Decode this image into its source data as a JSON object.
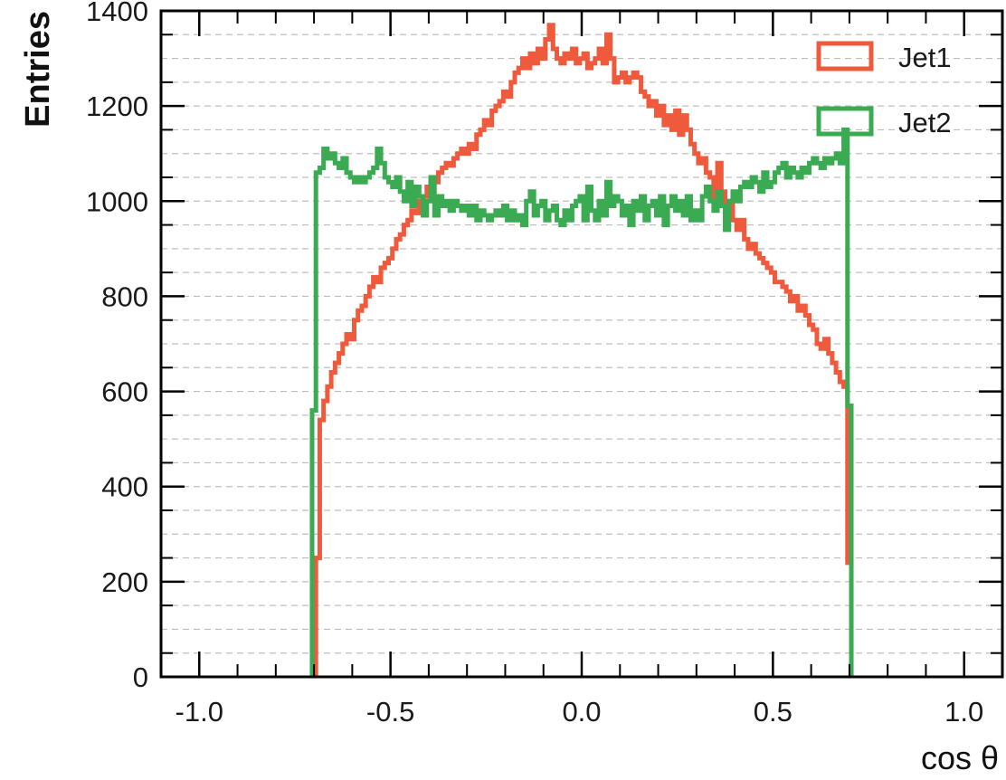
{
  "chart_data": {
    "type": "line",
    "step": true,
    "xlabel": "cos θ",
    "ylabel": "Entries",
    "xlim": [
      -1.1,
      1.1
    ],
    "ylim": [
      0,
      1400
    ],
    "grid": {
      "horizontal": true,
      "vertical": false,
      "style": "dashed"
    },
    "legend_position": "top-right",
    "x_ticks": [
      {
        "value": -1.0,
        "label": "-1.0"
      },
      {
        "value": -0.5,
        "label": "-0.5"
      },
      {
        "value": 0.0,
        "label": "0.0"
      },
      {
        "value": 0.5,
        "label": "0.5"
      },
      {
        "value": 1.0,
        "label": "1.0"
      }
    ],
    "y_ticks": [
      {
        "value": 0,
        "label": "0"
      },
      {
        "value": 200,
        "label": "200"
      },
      {
        "value": 400,
        "label": "400"
      },
      {
        "value": 600,
        "label": "600"
      },
      {
        "value": 800,
        "label": "800"
      },
      {
        "value": 1000,
        "label": "1000"
      },
      {
        "value": 1200,
        "label": "1200"
      },
      {
        "value": 1400,
        "label": "1400"
      }
    ],
    "series": [
      {
        "name": "Jet1",
        "color": "#f05a3c",
        "points": [
          [
            -0.69,
            250
          ],
          [
            -0.68,
            540
          ],
          [
            -0.67,
            580
          ],
          [
            -0.66,
            610
          ],
          [
            -0.65,
            640
          ],
          [
            -0.64,
            660
          ],
          [
            -0.63,
            680
          ],
          [
            -0.62,
            700
          ],
          [
            -0.61,
            720
          ],
          [
            -0.6,
            710
          ],
          [
            -0.59,
            750
          ],
          [
            -0.58,
            770
          ],
          [
            -0.57,
            780
          ],
          [
            -0.56,
            800
          ],
          [
            -0.55,
            820
          ],
          [
            -0.54,
            840
          ],
          [
            -0.53,
            830
          ],
          [
            -0.52,
            860
          ],
          [
            -0.51,
            870
          ],
          [
            -0.5,
            880
          ],
          [
            -0.49,
            900
          ],
          [
            -0.48,
            920
          ],
          [
            -0.47,
            930
          ],
          [
            -0.46,
            950
          ],
          [
            -0.45,
            960
          ],
          [
            -0.44,
            980
          ],
          [
            -0.43,
            975
          ],
          [
            -0.42,
            1000
          ],
          [
            -0.41,
            1010
          ],
          [
            -0.4,
            1030
          ],
          [
            -0.39,
            1050
          ],
          [
            -0.38,
            1040
          ],
          [
            -0.37,
            1060
          ],
          [
            -0.36,
            1070
          ],
          [
            -0.35,
            1080
          ],
          [
            -0.34,
            1075
          ],
          [
            -0.33,
            1090
          ],
          [
            -0.32,
            1100
          ],
          [
            -0.31,
            1110
          ],
          [
            -0.3,
            1100
          ],
          [
            -0.29,
            1120
          ],
          [
            -0.28,
            1110
          ],
          [
            -0.27,
            1140
          ],
          [
            -0.26,
            1150
          ],
          [
            -0.25,
            1170
          ],
          [
            -0.24,
            1160
          ],
          [
            -0.23,
            1190
          ],
          [
            -0.22,
            1200
          ],
          [
            -0.21,
            1210
          ],
          [
            -0.2,
            1230
          ],
          [
            -0.19,
            1220
          ],
          [
            -0.18,
            1250
          ],
          [
            -0.17,
            1270
          ],
          [
            -0.16,
            1280
          ],
          [
            -0.15,
            1300
          ],
          [
            -0.14,
            1280
          ],
          [
            -0.13,
            1310
          ],
          [
            -0.12,
            1290
          ],
          [
            -0.11,
            1320
          ],
          [
            -0.1,
            1300
          ],
          [
            -0.09,
            1340
          ],
          [
            -0.08,
            1370
          ],
          [
            -0.07,
            1320
          ],
          [
            -0.06,
            1300
          ],
          [
            -0.05,
            1290
          ],
          [
            -0.04,
            1310
          ],
          [
            -0.03,
            1300
          ],
          [
            -0.02,
            1320
          ],
          [
            -0.01,
            1290
          ],
          [
            0.0,
            1300
          ],
          [
            0.01,
            1310
          ],
          [
            0.02,
            1280
          ],
          [
            0.03,
            1290
          ],
          [
            0.04,
            1300
          ],
          [
            0.05,
            1320
          ],
          [
            0.06,
            1290
          ],
          [
            0.07,
            1350
          ],
          [
            0.08,
            1300
          ],
          [
            0.09,
            1250
          ],
          [
            0.1,
            1260
          ],
          [
            0.11,
            1270
          ],
          [
            0.12,
            1250
          ],
          [
            0.13,
            1260
          ],
          [
            0.14,
            1270
          ],
          [
            0.15,
            1260
          ],
          [
            0.16,
            1230
          ],
          [
            0.17,
            1220
          ],
          [
            0.18,
            1200
          ],
          [
            0.19,
            1210
          ],
          [
            0.2,
            1180
          ],
          [
            0.21,
            1200
          ],
          [
            0.22,
            1160
          ],
          [
            0.23,
            1180
          ],
          [
            0.24,
            1150
          ],
          [
            0.25,
            1190
          ],
          [
            0.26,
            1140
          ],
          [
            0.27,
            1180
          ],
          [
            0.28,
            1150
          ],
          [
            0.29,
            1120
          ],
          [
            0.3,
            1100
          ],
          [
            0.31,
            1080
          ],
          [
            0.32,
            1090
          ],
          [
            0.33,
            1060
          ],
          [
            0.34,
            1050
          ],
          [
            0.35,
            1000
          ],
          [
            0.36,
            1080
          ],
          [
            0.37,
            1020
          ],
          [
            0.38,
            980
          ],
          [
            0.39,
            1000
          ],
          [
            0.4,
            960
          ],
          [
            0.41,
            940
          ],
          [
            0.42,
            960
          ],
          [
            0.43,
            920
          ],
          [
            0.44,
            900
          ],
          [
            0.45,
            910
          ],
          [
            0.46,
            890
          ],
          [
            0.47,
            880
          ],
          [
            0.48,
            870
          ],
          [
            0.49,
            860
          ],
          [
            0.5,
            850
          ],
          [
            0.51,
            830
          ],
          [
            0.52,
            830
          ],
          [
            0.53,
            820
          ],
          [
            0.54,
            810
          ],
          [
            0.55,
            790
          ],
          [
            0.56,
            800
          ],
          [
            0.57,
            770
          ],
          [
            0.58,
            780
          ],
          [
            0.59,
            760
          ],
          [
            0.6,
            740
          ],
          [
            0.61,
            730
          ],
          [
            0.62,
            700
          ],
          [
            0.63,
            690
          ],
          [
            0.64,
            710
          ],
          [
            0.65,
            680
          ],
          [
            0.66,
            660
          ],
          [
            0.67,
            640
          ],
          [
            0.68,
            620
          ],
          [
            0.69,
            610
          ],
          [
            0.7,
            240
          ]
        ]
      },
      {
        "name": "Jet2",
        "color": "#3aab52",
        "points": [
          [
            -0.7,
            560
          ],
          [
            -0.69,
            1060
          ],
          [
            -0.68,
            1070
          ],
          [
            -0.67,
            1110
          ],
          [
            -0.66,
            1090
          ],
          [
            -0.65,
            1100
          ],
          [
            -0.64,
            1080
          ],
          [
            -0.63,
            1070
          ],
          [
            -0.62,
            1090
          ],
          [
            -0.61,
            1060
          ],
          [
            -0.6,
            1050
          ],
          [
            -0.59,
            1040
          ],
          [
            -0.58,
            1050
          ],
          [
            -0.57,
            1040
          ],
          [
            -0.56,
            1050
          ],
          [
            -0.55,
            1060
          ],
          [
            -0.54,
            1070
          ],
          [
            -0.53,
            1110
          ],
          [
            -0.52,
            1080
          ],
          [
            -0.51,
            1050
          ],
          [
            -0.5,
            1040
          ],
          [
            -0.49,
            1030
          ],
          [
            -0.48,
            1050
          ],
          [
            -0.47,
            1020
          ],
          [
            -0.46,
            1000
          ],
          [
            -0.45,
            1040
          ],
          [
            -0.44,
            990
          ],
          [
            -0.43,
            1030
          ],
          [
            -0.42,
            1010
          ],
          [
            -0.41,
            970
          ],
          [
            -0.4,
            1000
          ],
          [
            -0.39,
            1050
          ],
          [
            -0.38,
            970
          ],
          [
            -0.37,
            1010
          ],
          [
            -0.36,
            990
          ],
          [
            -0.35,
            1000
          ],
          [
            -0.34,
            980
          ],
          [
            -0.33,
            1000
          ],
          [
            -0.32,
            990
          ],
          [
            -0.31,
            980
          ],
          [
            -0.3,
            990
          ],
          [
            -0.29,
            970
          ],
          [
            -0.28,
            990
          ],
          [
            -0.27,
            960
          ],
          [
            -0.26,
            980
          ],
          [
            -0.25,
            970
          ],
          [
            -0.24,
            960
          ],
          [
            -0.23,
            970
          ],
          [
            -0.22,
            980
          ],
          [
            -0.21,
            970
          ],
          [
            -0.2,
            990
          ],
          [
            -0.19,
            960
          ],
          [
            -0.18,
            980
          ],
          [
            -0.17,
            960
          ],
          [
            -0.16,
            970
          ],
          [
            -0.15,
            950
          ],
          [
            -0.14,
            1000
          ],
          [
            -0.13,
            1020
          ],
          [
            -0.12,
            970
          ],
          [
            -0.11,
            990
          ],
          [
            -0.1,
            1000
          ],
          [
            -0.09,
            960
          ],
          [
            -0.08,
            980
          ],
          [
            -0.07,
            990
          ],
          [
            -0.06,
            960
          ],
          [
            -0.05,
            950
          ],
          [
            -0.04,
            980
          ],
          [
            -0.03,
            960
          ],
          [
            -0.02,
            990
          ],
          [
            -0.01,
            1000
          ],
          [
            0.0,
            1010
          ],
          [
            0.01,
            960
          ],
          [
            0.02,
            1030
          ],
          [
            0.03,
            980
          ],
          [
            0.04,
            960
          ],
          [
            0.05,
            1000
          ],
          [
            0.06,
            970
          ],
          [
            0.07,
            1040
          ],
          [
            0.08,
            990
          ],
          [
            0.09,
            1010
          ],
          [
            0.1,
            1000
          ],
          [
            0.11,
            970
          ],
          [
            0.12,
            990
          ],
          [
            0.13,
            950
          ],
          [
            0.14,
            1000
          ],
          [
            0.15,
            980
          ],
          [
            0.16,
            1010
          ],
          [
            0.17,
            960
          ],
          [
            0.18,
            990
          ],
          [
            0.19,
            1000
          ],
          [
            0.2,
            970
          ],
          [
            0.21,
            1010
          ],
          [
            0.22,
            950
          ],
          [
            0.23,
            990
          ],
          [
            0.24,
            1010
          ],
          [
            0.25,
            980
          ],
          [
            0.26,
            1000
          ],
          [
            0.27,
            970
          ],
          [
            0.28,
            1010
          ],
          [
            0.29,
            960
          ],
          [
            0.3,
            980
          ],
          [
            0.31,
            960
          ],
          [
            0.32,
            1010
          ],
          [
            0.33,
            1030
          ],
          [
            0.34,
            1000
          ],
          [
            0.35,
            980
          ],
          [
            0.36,
            1020
          ],
          [
            0.37,
            990
          ],
          [
            0.38,
            940
          ],
          [
            0.39,
            1000
          ],
          [
            0.4,
            1020
          ],
          [
            0.41,
            1000
          ],
          [
            0.42,
            1030
          ],
          [
            0.43,
            1040
          ],
          [
            0.44,
            1030
          ],
          [
            0.45,
            1050
          ],
          [
            0.46,
            1040
          ],
          [
            0.47,
            1020
          ],
          [
            0.48,
            1060
          ],
          [
            0.49,
            1030
          ],
          [
            0.5,
            1040
          ],
          [
            0.51,
            1060
          ],
          [
            0.52,
            1070
          ],
          [
            0.53,
            1080
          ],
          [
            0.54,
            1050
          ],
          [
            0.55,
            1070
          ],
          [
            0.56,
            1060
          ],
          [
            0.57,
            1050
          ],
          [
            0.58,
            1070
          ],
          [
            0.59,
            1060
          ],
          [
            0.6,
            1080
          ],
          [
            0.61,
            1090
          ],
          [
            0.62,
            1080
          ],
          [
            0.63,
            1070
          ],
          [
            0.64,
            1090
          ],
          [
            0.65,
            1080
          ],
          [
            0.66,
            1090
          ],
          [
            0.67,
            1100
          ],
          [
            0.68,
            1080
          ],
          [
            0.69,
            1150
          ],
          [
            0.7,
            570
          ]
        ]
      }
    ]
  }
}
